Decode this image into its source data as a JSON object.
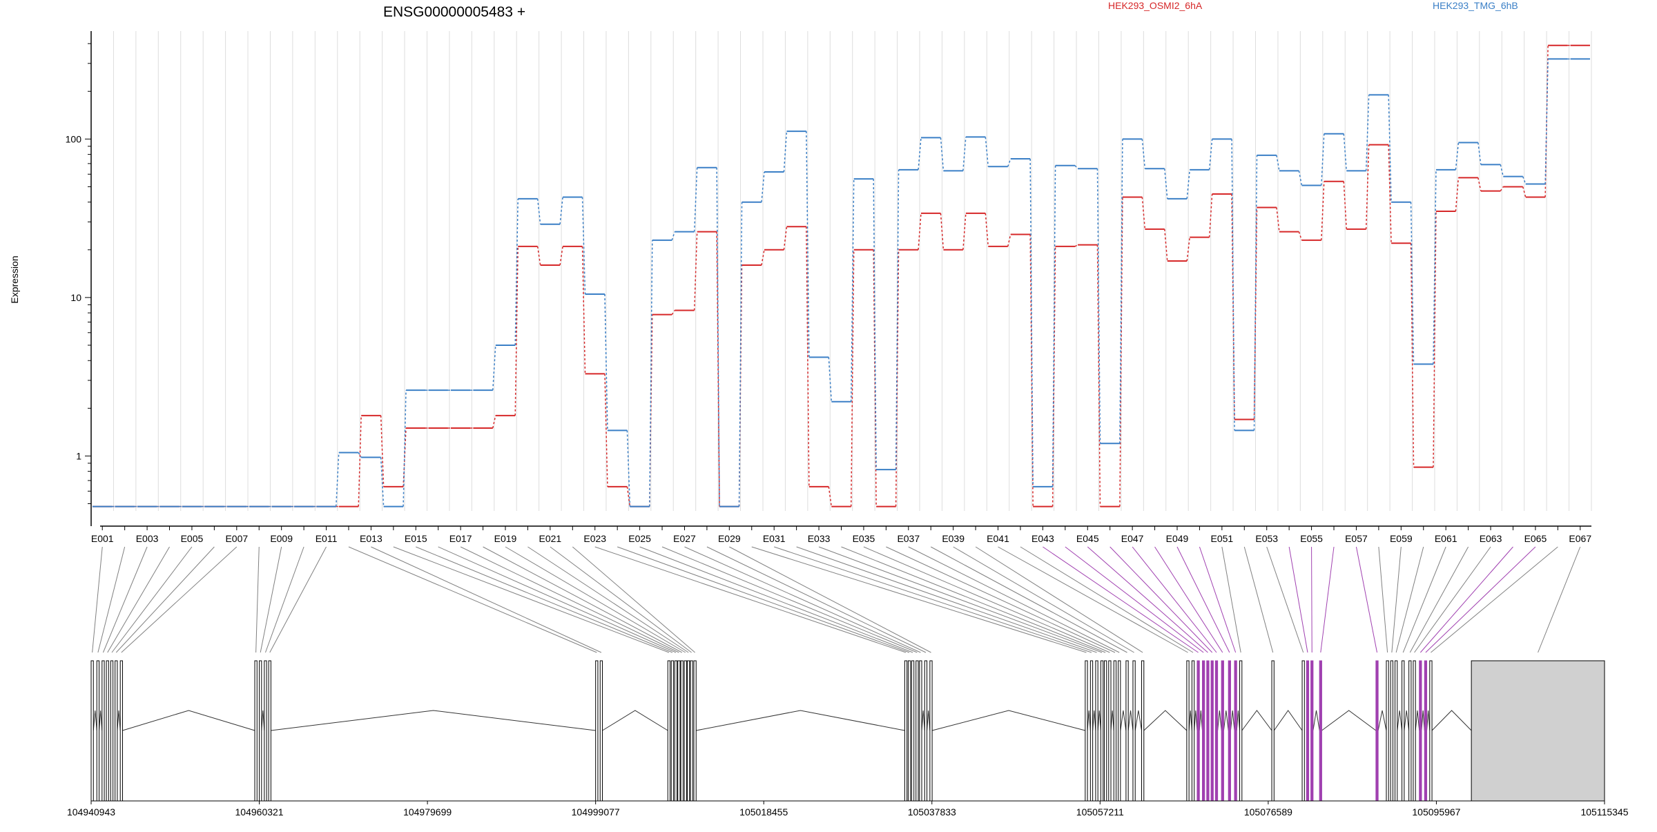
{
  "colors": {
    "series_a": "#d62728",
    "series_b": "#3a7fc6",
    "connector": "#808080",
    "highlight": "#a040b0",
    "exon_fill": "#ffffff",
    "last_exon_fill": "#d0d0d0",
    "grid": "#dddddd"
  },
  "chart_data": {
    "type": "line",
    "title": "ENSG00000005483 +",
    "ylabel": "Expression",
    "yscale": "log",
    "yticks": [
      1,
      10,
      100
    ],
    "ytick_labels": [
      "1",
      "10",
      "100"
    ],
    "ylim": [
      0.45,
      480
    ],
    "grid": true,
    "legend_position": "top",
    "exons": [
      "E001",
      "E002",
      "E003",
      "E004",
      "E005",
      "E006",
      "E007",
      "E008",
      "E009",
      "E010",
      "E011",
      "E012",
      "E013",
      "E014",
      "E015",
      "E016",
      "E017",
      "E018",
      "E019",
      "E020",
      "E021",
      "E022",
      "E023",
      "E024",
      "E025",
      "E026",
      "E027",
      "E028",
      "E029",
      "E030",
      "E031",
      "E032",
      "E033",
      "E034",
      "E035",
      "E036",
      "E037",
      "E038",
      "E039",
      "E040",
      "E041",
      "E042",
      "E043",
      "E044",
      "E045",
      "E046",
      "E047",
      "E048",
      "E049",
      "E050",
      "E051",
      "E052",
      "E053",
      "E054",
      "E055",
      "E056",
      "E057",
      "E058",
      "E059",
      "E060",
      "E061",
      "E062",
      "E063",
      "E064",
      "E065",
      "E066",
      "E067"
    ],
    "exon_tick_labels": [
      "E001",
      "E003",
      "E005",
      "E007",
      "E009",
      "E011",
      "E013",
      "E015",
      "E017",
      "E019",
      "E021",
      "E023",
      "E025",
      "E027",
      "E029",
      "E031",
      "E033",
      "E035",
      "E037",
      "E039",
      "E041",
      "E043",
      "E045",
      "E047",
      "E049",
      "E051",
      "E053",
      "E055",
      "E057",
      "E059",
      "E061",
      "E063",
      "E065",
      "E067"
    ],
    "series": [
      {
        "name": "HEK293_OSMI2_6hA",
        "color": "#d62728",
        "values": [
          0.48,
          0.48,
          0.48,
          0.48,
          0.48,
          0.48,
          0.48,
          0.48,
          0.48,
          0.48,
          0.48,
          0.48,
          1.8,
          0.64,
          1.5,
          1.5,
          1.5,
          1.5,
          1.8,
          21,
          16,
          21,
          3.3,
          0.64,
          0.48,
          7.8,
          8.3,
          26,
          0.48,
          16,
          20,
          28,
          0.64,
          0.48,
          20,
          0.48,
          20,
          34,
          20,
          34,
          21,
          25,
          0.48,
          21,
          21.5,
          0.48,
          43,
          27,
          17,
          24,
          45,
          1.7,
          37,
          26,
          23,
          54,
          27,
          92,
          22,
          0.85,
          35,
          57,
          47,
          50,
          43,
          390,
          390
        ]
      },
      {
        "name": "HEK293_TMG_6hB",
        "color": "#3a7fc6",
        "values": [
          0.48,
          0.48,
          0.48,
          0.48,
          0.48,
          0.48,
          0.48,
          0.48,
          0.48,
          0.48,
          0.48,
          1.05,
          0.98,
          0.48,
          2.6,
          2.6,
          2.6,
          2.6,
          5.0,
          42,
          29,
          43,
          10.5,
          1.45,
          0.48,
          23,
          26,
          66,
          0.48,
          40,
          62,
          112,
          4.2,
          2.2,
          56,
          0.82,
          64,
          102,
          63,
          103,
          67,
          75,
          0.64,
          68,
          65,
          1.2,
          100,
          65,
          42,
          64,
          100,
          1.45,
          79,
          63,
          51,
          108,
          63,
          190,
          40,
          3.8,
          64,
          95,
          69,
          58,
          52,
          320,
          320
        ]
      }
    ],
    "genomic_positions": [
      104940943,
      104960321,
      104979699,
      104999077,
      105018455,
      105037833,
      105057211,
      105076589,
      105095967,
      105115345
    ],
    "genomic_position_labels": [
      "104940943",
      "104960321",
      "104979699",
      "104999077",
      "105018455",
      "105037833",
      "105057211",
      "105076589",
      "105095967",
      "105115345"
    ]
  }
}
